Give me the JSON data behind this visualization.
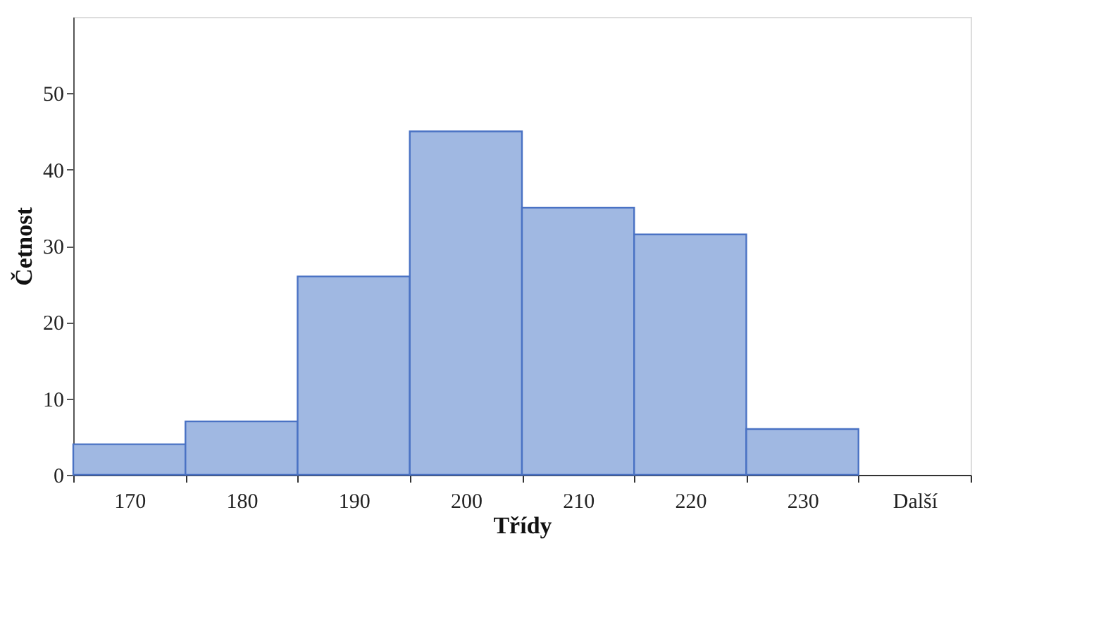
{
  "chart_data": {
    "type": "bar",
    "xlabel": "Třídy",
    "ylabel": "Četnost",
    "categories": [
      "170",
      "180",
      "190",
      "200",
      "210",
      "220",
      "230",
      "Další"
    ],
    "values": [
      4,
      7,
      26,
      45,
      35,
      31.5,
      6,
      null
    ],
    "color": "#a0b8e2",
    "ylim": [
      0,
      60
    ],
    "yticks": [
      0,
      10,
      20,
      30,
      40,
      50
    ],
    "grid": false
  }
}
